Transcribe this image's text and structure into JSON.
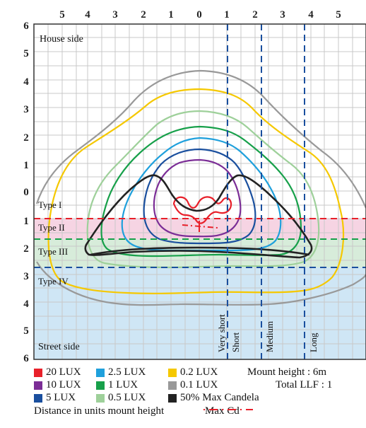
{
  "x_ticks": [
    "5",
    "4",
    "3",
    "2",
    "1",
    "0",
    "1",
    "2",
    "3",
    "4",
    "5"
  ],
  "y_ticks": [
    "6",
    "5",
    "4",
    "3",
    "2",
    "1",
    "0",
    "1",
    "2",
    "3",
    "4",
    "5",
    "6"
  ],
  "zones": {
    "house_side": "House side",
    "street_side": "Street side",
    "type_1": "Type I",
    "type_2": "Type II",
    "type_3": "Type III",
    "type_4": "Type IV"
  },
  "width_lines": [
    "Very short",
    "Short",
    "Medium",
    "Long"
  ],
  "legend": {
    "items": [
      {
        "label": "20 LUX",
        "color": "#e8202a"
      },
      {
        "label": "10 LUX",
        "color": "#7b2d96"
      },
      {
        "label": "5 LUX",
        "color": "#1a4f9e"
      },
      {
        "label": "2.5 LUX",
        "color": "#1fa0dc"
      },
      {
        "label": "1 LUX",
        "color": "#17a04a"
      },
      {
        "label": "0.5 LUX",
        "color": "#9ed09a"
      },
      {
        "label": "0.2 LUX",
        "color": "#f5c800"
      },
      {
        "label": "0.1 LUX",
        "color": "#999999"
      },
      {
        "label": "50% Max Candela",
        "color": "#222222"
      }
    ],
    "mount_height": "Mount height : 6m",
    "total_llf": "Total LLF : 1",
    "distance_note": "Distance in units mount height",
    "max_cd": "Max Cd"
  },
  "colors": {
    "type2_band": "#f6d4e3",
    "type3_band": "#d7ecda",
    "type4_band": "#cfe6f5",
    "grid": "#c8c8c8",
    "type1_line": "#e8202a",
    "type2_line": "#17a04a",
    "type3_line": "#1a4f9e",
    "width_line": "#1a4f9e",
    "max_cd": "#e8202a"
  }
}
